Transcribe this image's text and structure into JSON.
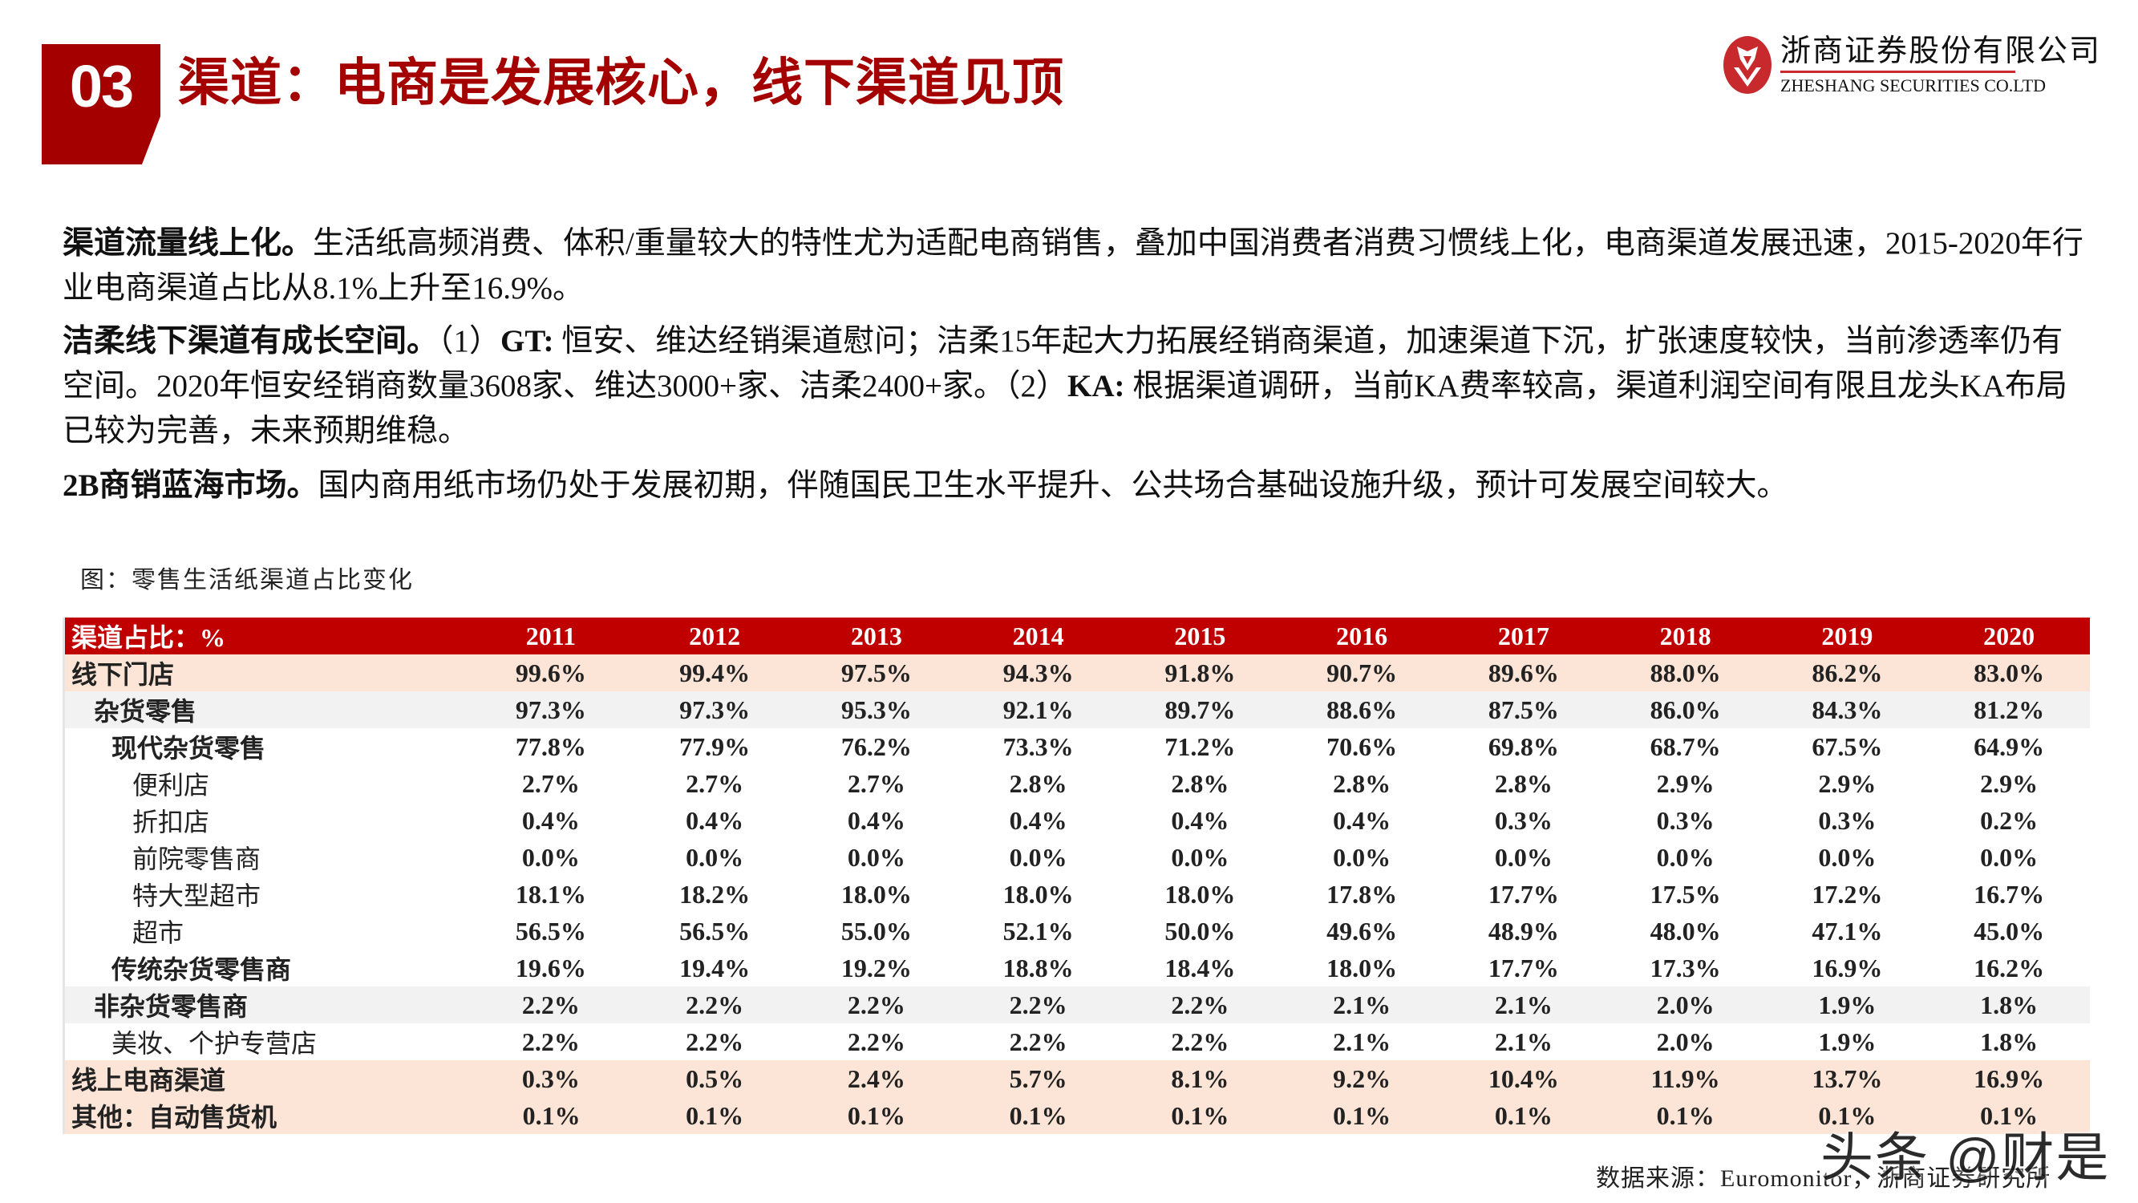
{
  "header": {
    "section_number": "03",
    "title": "渠道：电商是发展核心，线下渠道见顶",
    "accent_color": "#a50000"
  },
  "logo": {
    "name_cn": "浙商证券股份有限公司",
    "name_en": "ZHESHANG SECURITIES CO.LTD",
    "brand_color": "#c8292d"
  },
  "paragraphs": [
    {
      "lead": "渠道流量线上化。",
      "text": "生活纸高频消费、体积/重量较大的特性尤为适配电商销售，叠加中国消费者消费习惯线上化，电商渠道发展迅速，2015-2020年行业电商渠道占比从8.1%上升至16.9%。"
    },
    {
      "lead": "洁柔线下渠道有成长空间。",
      "part1_prefix": "（1）",
      "part1_lead": "GT:",
      "part1_text": " 恒安、维达经销渠道慰问；洁柔15年起大力拓展经销商渠道，加速渠道下沉，扩张速度较快，当前渗透率仍有空间。2020年恒安经销商数量3608家、维达3000+家、洁柔2400+家。",
      "part2_prefix": "（2）",
      "part2_lead": "KA:",
      "part2_text": " 根据渠道调研，当前KA费率较高，渠道利润空间有限且龙头KA布局已较为完善，未来预期维稳。"
    },
    {
      "lead": "2B商销蓝海市场。",
      "text": "国内商用纸市场仍处于发展初期，伴随国民卫生水平提升、公共场合基础设施升级，预计可发展空间较大。"
    }
  ],
  "figure": {
    "caption": "图：零售生活纸渠道占比变化",
    "source": "数据来源：Euromonitor，浙商证券研究所"
  },
  "table": {
    "header_label": "渠道占比：%",
    "header_color": "#c00000",
    "years": [
      "2011",
      "2012",
      "2013",
      "2014",
      "2015",
      "2016",
      "2017",
      "2018",
      "2019",
      "2020"
    ],
    "rows": [
      {
        "label": "线下门店",
        "level": "lvl0",
        "style": "peach",
        "values": [
          "99.6%",
          "99.4%",
          "97.5%",
          "94.3%",
          "91.8%",
          "90.7%",
          "89.6%",
          "88.0%",
          "86.2%",
          "83.0%"
        ]
      },
      {
        "label": "杂货零售",
        "level": "lvl1",
        "style": "grey",
        "values": [
          "97.3%",
          "97.3%",
          "95.3%",
          "92.1%",
          "89.7%",
          "88.6%",
          "87.5%",
          "86.0%",
          "84.3%",
          "81.2%"
        ]
      },
      {
        "label": "现代杂货零售",
        "level": "lvl2",
        "style": "white",
        "values": [
          "77.8%",
          "77.9%",
          "76.2%",
          "73.3%",
          "71.2%",
          "70.6%",
          "69.8%",
          "68.7%",
          "67.5%",
          "64.9%"
        ]
      },
      {
        "label": "便利店",
        "level": "lvl3",
        "style": "white",
        "values": [
          "2.7%",
          "2.7%",
          "2.7%",
          "2.8%",
          "2.8%",
          "2.8%",
          "2.8%",
          "2.9%",
          "2.9%",
          "2.9%"
        ]
      },
      {
        "label": "折扣店",
        "level": "lvl3",
        "style": "white",
        "values": [
          "0.4%",
          "0.4%",
          "0.4%",
          "0.4%",
          "0.4%",
          "0.4%",
          "0.3%",
          "0.3%",
          "0.3%",
          "0.2%"
        ]
      },
      {
        "label": "前院零售商",
        "level": "lvl3",
        "style": "white",
        "values": [
          "0.0%",
          "0.0%",
          "0.0%",
          "0.0%",
          "0.0%",
          "0.0%",
          "0.0%",
          "0.0%",
          "0.0%",
          "0.0%"
        ]
      },
      {
        "label": "特大型超市",
        "level": "lvl3",
        "style": "white",
        "values": [
          "18.1%",
          "18.2%",
          "18.0%",
          "18.0%",
          "18.0%",
          "17.8%",
          "17.7%",
          "17.5%",
          "17.2%",
          "16.7%"
        ]
      },
      {
        "label": "超市",
        "level": "lvl3",
        "style": "white",
        "values": [
          "56.5%",
          "56.5%",
          "55.0%",
          "52.1%",
          "50.0%",
          "49.6%",
          "48.9%",
          "48.0%",
          "47.1%",
          "45.0%"
        ]
      },
      {
        "label": "传统杂货零售商",
        "level": "lvl2",
        "style": "white",
        "values": [
          "19.6%",
          "19.4%",
          "19.2%",
          "18.8%",
          "18.4%",
          "18.0%",
          "17.7%",
          "17.3%",
          "16.9%",
          "16.2%"
        ]
      },
      {
        "label": "非杂货零售商",
        "level": "lvl1",
        "style": "grey",
        "values": [
          "2.2%",
          "2.2%",
          "2.2%",
          "2.2%",
          "2.2%",
          "2.1%",
          "2.1%",
          "2.0%",
          "1.9%",
          "1.8%"
        ]
      },
      {
        "label": "美妆、个护专营店",
        "level": "lvl2n",
        "style": "white",
        "values": [
          "2.2%",
          "2.2%",
          "2.2%",
          "2.2%",
          "2.2%",
          "2.1%",
          "2.1%",
          "2.0%",
          "1.9%",
          "1.8%"
        ]
      },
      {
        "label": "线上电商渠道",
        "level": "lvl0",
        "style": "peach",
        "values": [
          "0.3%",
          "0.5%",
          "2.4%",
          "5.7%",
          "8.1%",
          "9.2%",
          "10.4%",
          "11.9%",
          "13.7%",
          "16.9%"
        ]
      },
      {
        "label": "其他：自动售货机",
        "level": "lvl0",
        "style": "peach",
        "values": [
          "0.1%",
          "0.1%",
          "0.1%",
          "0.1%",
          "0.1%",
          "0.1%",
          "0.1%",
          "0.1%",
          "0.1%",
          "0.1%"
        ]
      }
    ]
  },
  "watermark": "头条 @财是"
}
